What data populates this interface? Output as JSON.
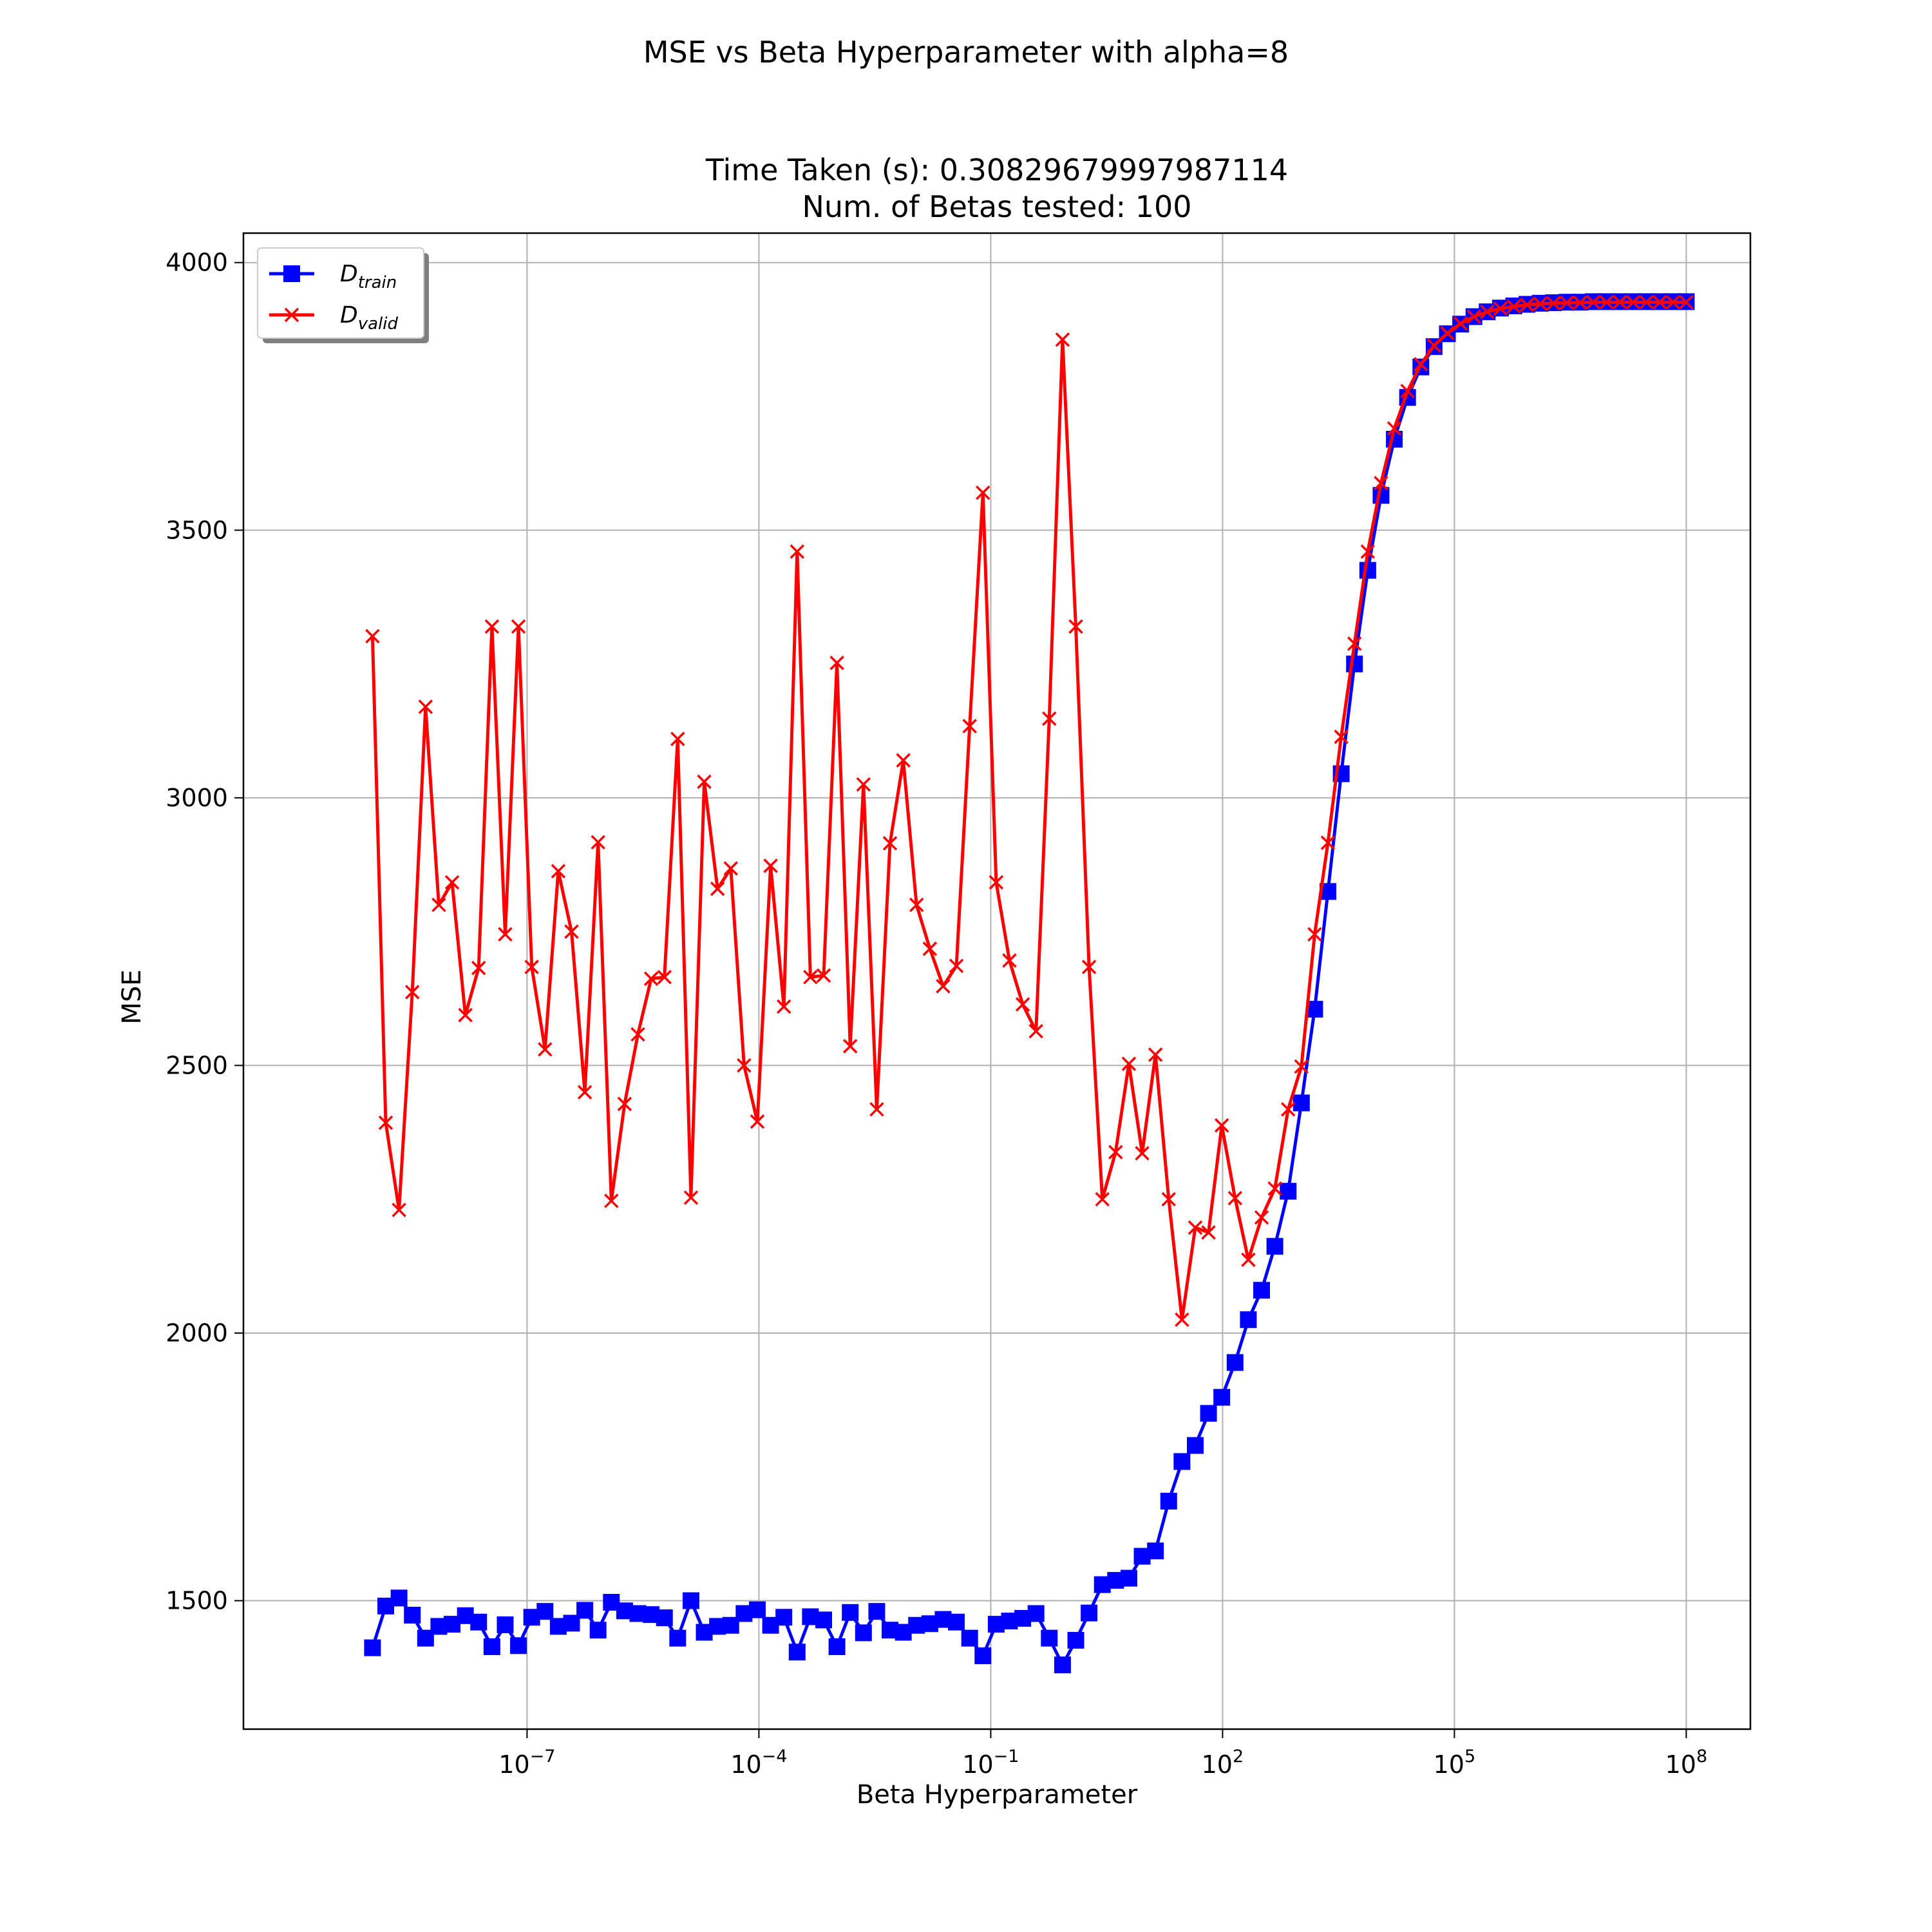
{
  "chart_data": {
    "type": "line",
    "suptitle": "MSE vs Beta Hyperparameter with alpha=8",
    "title_line1": "Time Taken (s): 0.308296799979871​14",
    "title_line2": "Num. of Betas tested: 100",
    "xlabel": "Beta Hyperparameter",
    "ylabel": "MSE",
    "xscale": "log",
    "xlim_log10": [
      -10.67,
      8.83
    ],
    "ylim": [
      1260,
      4055
    ],
    "x_ticks": [
      {
        "exp": -7,
        "base": "10",
        "sup": "−7"
      },
      {
        "exp": -4,
        "base": "10",
        "sup": "−4"
      },
      {
        "exp": -1,
        "base": "10",
        "sup": "−1"
      },
      {
        "exp": 2,
        "base": "10",
        "sup": "2"
      },
      {
        "exp": 5,
        "base": "10",
        "sup": "5"
      },
      {
        "exp": 8,
        "base": "10",
        "sup": "8"
      }
    ],
    "y_ticks": [
      "1500",
      "2000",
      "2500",
      "3000",
      "3500",
      "4000"
    ],
    "grid": true,
    "legend_position": "top-left",
    "x_log10": {
      "start": -9.0,
      "stop": 8.0,
      "count": 100
    },
    "series": [
      {
        "name": "D",
        "name_sub": "train",
        "color": "#0000ff",
        "marker": "square",
        "values": [
          1412,
          1490,
          1505,
          1473,
          1430,
          1452,
          1456,
          1472,
          1460,
          1414,
          1455,
          1416,
          1469,
          1480,
          1452,
          1458,
          1482,
          1445,
          1497,
          1481,
          1476,
          1474,
          1468,
          1430,
          1500,
          1441,
          1452,
          1454,
          1476,
          1483,
          1454,
          1469,
          1404,
          1470,
          1464,
          1414,
          1478,
          1440,
          1480,
          1445,
          1441,
          1454,
          1457,
          1465,
          1460,
          1430,
          1397,
          1456,
          1462,
          1467,
          1476,
          1430,
          1380,
          1426,
          1477,
          1530,
          1538,
          1542,
          1583,
          1593,
          1686,
          1760,
          1790,
          1850,
          1880,
          1945,
          2025,
          2080,
          2162,
          2265,
          2430,
          2605,
          2825,
          3045,
          3250,
          3425,
          3565,
          3670,
          3748,
          3805,
          3843,
          3867,
          3885,
          3899,
          3908,
          3915,
          3919,
          3922,
          3924,
          3925,
          3926,
          3926,
          3927,
          3927,
          3927,
          3927,
          3927,
          3927,
          3927,
          3927
        ]
      },
      {
        "name": "D",
        "name_sub": "valid",
        "color": "#ff0000",
        "marker": "x",
        "values": [
          3302,
          2393,
          2230,
          2637,
          3170,
          2800,
          2842,
          2594,
          2682,
          3320,
          2745,
          3320,
          2684,
          2530,
          2863,
          2750,
          2450,
          2917,
          2247,
          2428,
          2558,
          2662,
          2665,
          3110,
          2253,
          3030,
          2830,
          2868,
          2500,
          2395,
          2873,
          2610,
          3460,
          2665,
          2668,
          3252,
          2536,
          3025,
          2418,
          2915,
          3070,
          2800,
          2718,
          2648,
          2686,
          3134,
          3570,
          2842,
          2696,
          2614,
          2564,
          3148,
          3856,
          3320,
          2684,
          2250,
          2338,
          2503,
          2336,
          2520,
          2250,
          2025,
          2197,
          2188,
          2388,
          2252,
          2137,
          2216,
          2270,
          2418,
          2498,
          2745,
          2916,
          3114,
          3288,
          3460,
          3588,
          3690,
          3760,
          3810,
          3845,
          3868,
          3886,
          3899,
          3908,
          3914,
          3918,
          3921,
          3923,
          3924,
          3925,
          3925,
          3926,
          3926,
          3926,
          3926,
          3926,
          3926,
          3926,
          3926
        ]
      }
    ]
  }
}
